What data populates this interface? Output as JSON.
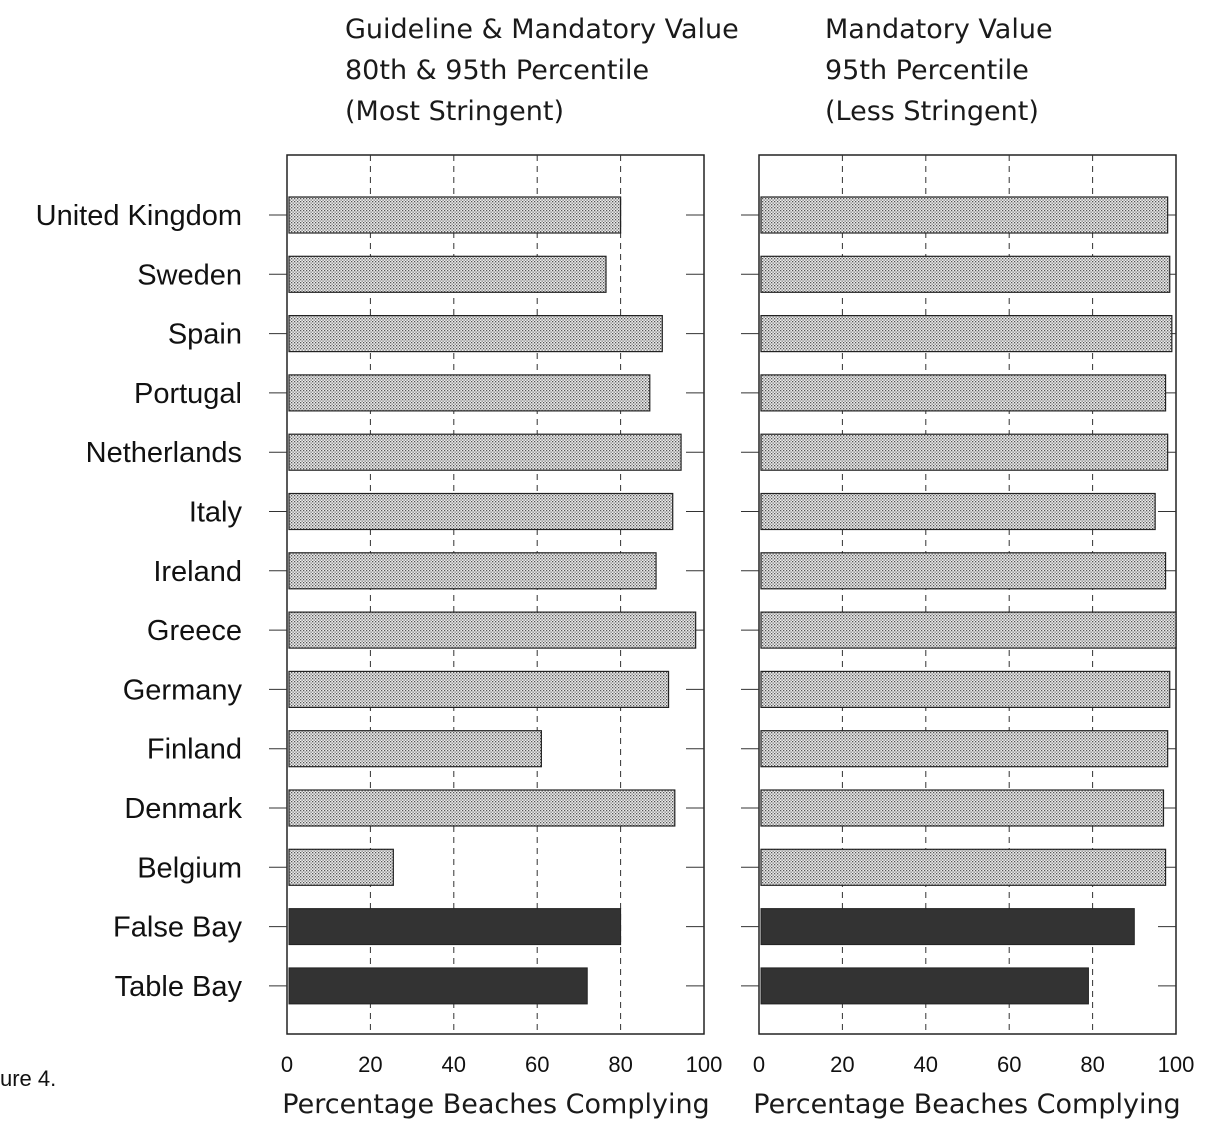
{
  "caption": "ure 4.",
  "colors": {
    "highlight_bar": "#333333",
    "pattern_bar": "#d9d9d9"
  },
  "chart_data": [
    {
      "type": "bar",
      "orientation": "horizontal",
      "title_lines": [
        "Guideline & Mandatory Value",
        "80th & 95th Percentile",
        "(Most Stringent)"
      ],
      "xlabel": "Percentage Beaches Complying",
      "ylabel": "",
      "xlim": [
        0,
        100
      ],
      "xticks": [
        "0",
        "20",
        "40",
        "60",
        "80",
        "100"
      ],
      "grid": true,
      "categories": [
        "United Kingdom",
        "Sweden",
        "Spain",
        "Portugal",
        "Netherlands",
        "Italy",
        "Ireland",
        "Greece",
        "Germany",
        "Finland",
        "Denmark",
        "Belgium",
        "False Bay",
        "Table Bay"
      ],
      "values": [
        80,
        76.5,
        90,
        87,
        94.5,
        92.5,
        88.5,
        98,
        91.5,
        61,
        93,
        25.5,
        80,
        72
      ]
    },
    {
      "type": "bar",
      "orientation": "horizontal",
      "title_lines": [
        "Mandatory Value",
        "95th Percentile",
        "(Less Stringent)"
      ],
      "xlabel": "Percentage Beaches Complying",
      "ylabel": "",
      "xlim": [
        0,
        100
      ],
      "xticks": [
        "0",
        "20",
        "40",
        "60",
        "80",
        "100"
      ],
      "grid": true,
      "categories": [
        "United Kingdom",
        "Sweden",
        "Spain",
        "Portugal",
        "Netherlands",
        "Italy",
        "Ireland",
        "Greece",
        "Germany",
        "Finland",
        "Denmark",
        "Belgium",
        "False Bay",
        "Table Bay"
      ],
      "values": [
        98,
        98.5,
        99,
        97.5,
        98,
        95,
        97.5,
        100,
        98.5,
        98,
        97,
        97.5,
        90,
        79
      ]
    }
  ]
}
